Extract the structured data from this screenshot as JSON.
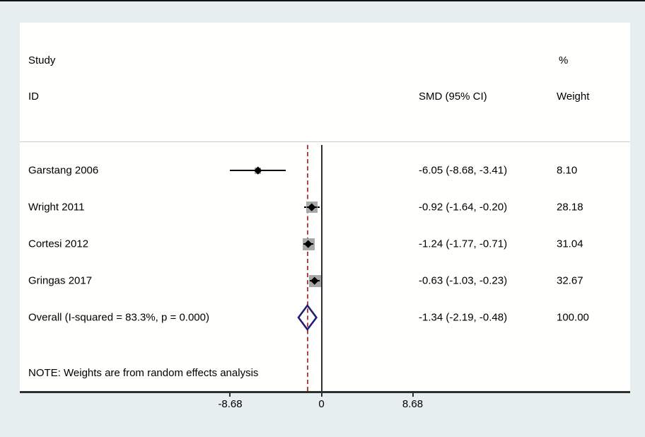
{
  "figure": {
    "header": {
      "col_study_line1": "Study",
      "col_study_line2": "ID",
      "col_pct": "%",
      "col_smd": "SMD (95% CI)",
      "col_weight": "Weight"
    },
    "note": "NOTE: Weights are from random effects analysis"
  },
  "chart_data": {
    "type": "forest",
    "title": "Forest plot of standardized mean differences (random effects meta-analysis)",
    "x_axis": {
      "ticks": [
        -8.68,
        0,
        8.68
      ],
      "tick_labels": [
        "-8.68",
        "0",
        "8.68"
      ],
      "range_shown": [
        -8.68,
        8.68
      ],
      "zero_reference_line": 0,
      "dashed_line_at_overall": -1.34
    },
    "columns": [
      "Study ID",
      "SMD (95% CI)",
      "% Weight"
    ],
    "studies": [
      {
        "id": "Garstang 2006",
        "smd": -6.05,
        "ci_lower": -8.68,
        "ci_upper": -3.41,
        "smd_ci_label": "-6.05 (-8.68, -3.41)",
        "weight_pct": 8.1,
        "weight_label": "8.10"
      },
      {
        "id": "Wright 2011",
        "smd": -0.92,
        "ci_lower": -1.64,
        "ci_upper": -0.2,
        "smd_ci_label": "-0.92 (-1.64, -0.20)",
        "weight_pct": 28.18,
        "weight_label": "28.18"
      },
      {
        "id": "Cortesi 2012",
        "smd": -1.24,
        "ci_lower": -1.77,
        "ci_upper": -0.71,
        "smd_ci_label": "-1.24 (-1.77, -0.71)",
        "weight_pct": 31.04,
        "weight_label": "31.04"
      },
      {
        "id": "Gringas 2017",
        "smd": -0.63,
        "ci_lower": -1.03,
        "ci_upper": -0.23,
        "smd_ci_label": "-0.63 (-1.03, -0.23)",
        "weight_pct": 32.67,
        "weight_label": "32.67"
      }
    ],
    "overall": {
      "id": "Overall  (I-squared = 83.3%, p = 0.000)",
      "i_squared": "83.3%",
      "p_value": "0.000",
      "smd": -1.34,
      "ci_lower": -2.19,
      "ci_upper": -0.48,
      "smd_ci_label": "-1.34 (-2.19, -0.48)",
      "weight_pct": 100.0,
      "weight_label": "100.00"
    },
    "colors": {
      "background": "#e6eef0",
      "panel": "#fffffe",
      "axis": "#2e2e2e",
      "dashed_overall_line": "#ab4642",
      "diamond_outline": "#1f1f78",
      "weight_box": "#a8a8a8",
      "marker": "#000000",
      "ci_line": "#000000"
    }
  }
}
